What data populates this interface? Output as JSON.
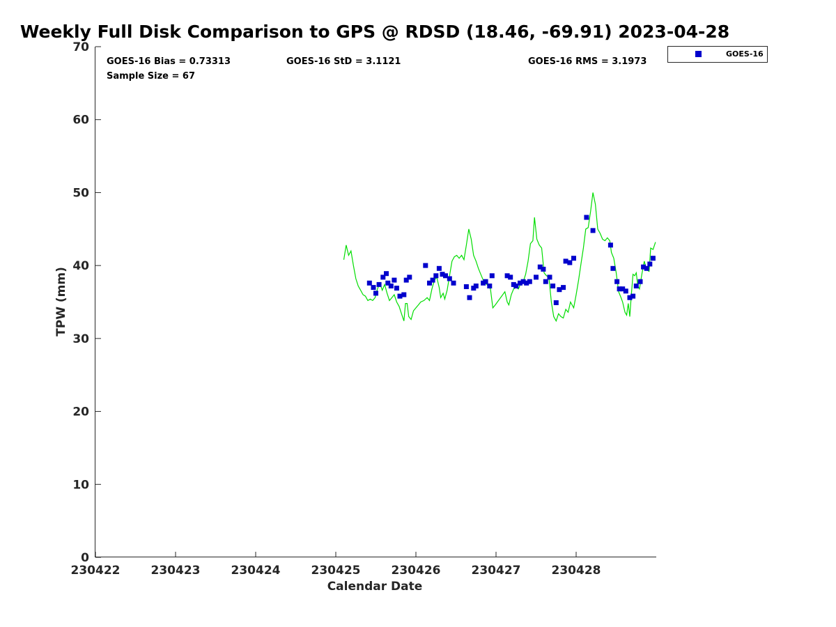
{
  "chart_data": {
    "type": "scatter",
    "title": "Weekly Full Disk Comparison to GPS @ RDSD (18.46, -69.91) 2023-04-28",
    "xlabel": "Calendar Date",
    "ylabel": "TPW (mm)",
    "xlim": [
      0,
      7
    ],
    "ylim": [
      0,
      70
    ],
    "x_tick_values": [
      0,
      1,
      2,
      3,
      4,
      5,
      6
    ],
    "x_tick_labels": [
      "230422",
      "230423",
      "230424",
      "230425",
      "230426",
      "230427",
      "230428"
    ],
    "y_ticks": [
      0,
      10,
      20,
      30,
      40,
      50,
      60,
      70
    ],
    "stats": {
      "bias": "GOES-16 Bias = 0.73313",
      "std": "GOES-16 StD = 3.1121",
      "rms": "GOES-16 RMS = 3.1973",
      "sample_size": "Sample Size = 67"
    },
    "legend": {
      "position": "top-right",
      "entries": [
        "GOES-16"
      ]
    },
    "colors": {
      "goes": "#0000cc",
      "gps": "#00dd00"
    },
    "series": [
      {
        "name": "GOES-16",
        "kind": "scatter",
        "points": [
          [
            3.42,
            37.6
          ],
          [
            3.47,
            37.0
          ],
          [
            3.5,
            36.2
          ],
          [
            3.54,
            37.4
          ],
          [
            3.59,
            38.4
          ],
          [
            3.63,
            38.9
          ],
          [
            3.65,
            37.6
          ],
          [
            3.69,
            37.2
          ],
          [
            3.73,
            38.0
          ],
          [
            3.76,
            36.9
          ],
          [
            3.8,
            35.8
          ],
          [
            3.85,
            36.0
          ],
          [
            3.88,
            38.0
          ],
          [
            3.92,
            38.4
          ],
          [
            4.12,
            40.0
          ],
          [
            4.17,
            37.6
          ],
          [
            4.21,
            38.0
          ],
          [
            4.25,
            38.6
          ],
          [
            4.29,
            39.6
          ],
          [
            4.33,
            38.8
          ],
          [
            4.37,
            38.6
          ],
          [
            4.42,
            38.2
          ],
          [
            4.47,
            37.6
          ],
          [
            4.63,
            37.1
          ],
          [
            4.67,
            35.6
          ],
          [
            4.72,
            36.9
          ],
          [
            4.75,
            37.2
          ],
          [
            4.84,
            37.6
          ],
          [
            4.87,
            37.8
          ],
          [
            4.92,
            37.2
          ],
          [
            4.95,
            38.6
          ],
          [
            5.14,
            38.6
          ],
          [
            5.18,
            38.4
          ],
          [
            5.22,
            37.4
          ],
          [
            5.25,
            37.2
          ],
          [
            5.3,
            37.6
          ],
          [
            5.34,
            37.8
          ],
          [
            5.38,
            37.6
          ],
          [
            5.42,
            37.8
          ],
          [
            5.5,
            38.4
          ],
          [
            5.55,
            39.8
          ],
          [
            5.59,
            39.5
          ],
          [
            5.62,
            37.8
          ],
          [
            5.67,
            38.4
          ],
          [
            5.71,
            37.2
          ],
          [
            5.75,
            34.9
          ],
          [
            5.79,
            36.7
          ],
          [
            5.84,
            37.0
          ],
          [
            5.87,
            40.6
          ],
          [
            5.92,
            40.4
          ],
          [
            5.97,
            41.0
          ],
          [
            6.13,
            46.6
          ],
          [
            6.21,
            44.8
          ],
          [
            6.43,
            42.8
          ],
          [
            6.46,
            39.6
          ],
          [
            6.51,
            37.8
          ],
          [
            6.54,
            36.8
          ],
          [
            6.58,
            36.8
          ],
          [
            6.62,
            36.5
          ],
          [
            6.67,
            35.6
          ],
          [
            6.71,
            35.8
          ],
          [
            6.75,
            37.2
          ],
          [
            6.8,
            37.8
          ],
          [
            6.84,
            39.8
          ],
          [
            6.88,
            39.6
          ],
          [
            6.92,
            40.2
          ],
          [
            6.96,
            41.0
          ]
        ]
      },
      {
        "name": "GPS",
        "kind": "line",
        "points": [
          [
            3.1,
            40.8
          ],
          [
            3.13,
            42.8
          ],
          [
            3.16,
            41.4
          ],
          [
            3.19,
            42.0
          ],
          [
            3.22,
            40.0
          ],
          [
            3.25,
            38.2
          ],
          [
            3.28,
            37.2
          ],
          [
            3.31,
            36.6
          ],
          [
            3.34,
            36.0
          ],
          [
            3.37,
            35.8
          ],
          [
            3.4,
            35.2
          ],
          [
            3.43,
            35.4
          ],
          [
            3.46,
            35.2
          ],
          [
            3.49,
            35.6
          ],
          [
            3.52,
            36.8
          ],
          [
            3.55,
            37.6
          ],
          [
            3.58,
            36.6
          ],
          [
            3.61,
            37.4
          ],
          [
            3.64,
            36.2
          ],
          [
            3.67,
            35.2
          ],
          [
            3.7,
            35.6
          ],
          [
            3.73,
            36.0
          ],
          [
            3.76,
            35.0
          ],
          [
            3.79,
            34.4
          ],
          [
            3.82,
            33.4
          ],
          [
            3.85,
            32.4
          ],
          [
            3.87,
            34.8
          ],
          [
            3.89,
            34.8
          ],
          [
            3.91,
            33.0
          ],
          [
            3.94,
            32.6
          ],
          [
            3.97,
            33.8
          ],
          [
            4.0,
            34.2
          ],
          [
            4.03,
            34.6
          ],
          [
            4.06,
            35.0
          ],
          [
            4.1,
            35.2
          ],
          [
            4.14,
            35.6
          ],
          [
            4.17,
            35.2
          ],
          [
            4.2,
            36.8
          ],
          [
            4.23,
            38.0
          ],
          [
            4.26,
            38.4
          ],
          [
            4.29,
            37.0
          ],
          [
            4.31,
            35.6
          ],
          [
            4.34,
            36.2
          ],
          [
            4.36,
            35.4
          ],
          [
            4.39,
            36.6
          ],
          [
            4.42,
            38.6
          ],
          [
            4.45,
            40.6
          ],
          [
            4.48,
            41.2
          ],
          [
            4.51,
            41.4
          ],
          [
            4.54,
            41.0
          ],
          [
            4.57,
            41.4
          ],
          [
            4.6,
            40.8
          ],
          [
            4.63,
            42.8
          ],
          [
            4.66,
            45.0
          ],
          [
            4.69,
            43.6
          ],
          [
            4.72,
            41.4
          ],
          [
            4.75,
            40.6
          ],
          [
            4.78,
            39.6
          ],
          [
            4.81,
            38.8
          ],
          [
            4.84,
            38.0
          ],
          [
            4.87,
            37.6
          ],
          [
            4.9,
            37.2
          ],
          [
            4.93,
            36.8
          ],
          [
            4.96,
            34.2
          ],
          [
            4.99,
            34.6
          ],
          [
            5.03,
            35.2
          ],
          [
            5.07,
            35.8
          ],
          [
            5.11,
            36.4
          ],
          [
            5.14,
            35.0
          ],
          [
            5.16,
            34.6
          ],
          [
            5.19,
            36.0
          ],
          [
            5.22,
            36.8
          ],
          [
            5.25,
            37.0
          ],
          [
            5.28,
            36.8
          ],
          [
            5.31,
            37.6
          ],
          [
            5.34,
            37.8
          ],
          [
            5.37,
            38.8
          ],
          [
            5.4,
            40.6
          ],
          [
            5.43,
            43.0
          ],
          [
            5.46,
            43.4
          ],
          [
            5.48,
            46.6
          ],
          [
            5.51,
            43.6
          ],
          [
            5.54,
            42.8
          ],
          [
            5.57,
            42.4
          ],
          [
            5.6,
            39.0
          ],
          [
            5.63,
            38.6
          ],
          [
            5.66,
            38.4
          ],
          [
            5.69,
            35.0
          ],
          [
            5.72,
            33.0
          ],
          [
            5.75,
            32.4
          ],
          [
            5.78,
            33.4
          ],
          [
            5.81,
            33.0
          ],
          [
            5.84,
            32.8
          ],
          [
            5.87,
            34.0
          ],
          [
            5.9,
            33.6
          ],
          [
            5.93,
            35.0
          ],
          [
            5.97,
            34.2
          ],
          [
            6.0,
            36.0
          ],
          [
            6.03,
            38.0
          ],
          [
            6.06,
            40.2
          ],
          [
            6.09,
            42.4
          ],
          [
            6.12,
            45.0
          ],
          [
            6.15,
            45.2
          ],
          [
            6.18,
            47.4
          ],
          [
            6.21,
            50.0
          ],
          [
            6.24,
            48.4
          ],
          [
            6.27,
            45.0
          ],
          [
            6.3,
            44.4
          ],
          [
            6.33,
            43.6
          ],
          [
            6.36,
            43.4
          ],
          [
            6.39,
            43.8
          ],
          [
            6.42,
            43.4
          ],
          [
            6.44,
            41.8
          ],
          [
            6.47,
            41.0
          ],
          [
            6.5,
            39.0
          ],
          [
            6.53,
            36.4
          ],
          [
            6.56,
            35.6
          ],
          [
            6.58,
            35.0
          ],
          [
            6.61,
            33.6
          ],
          [
            6.63,
            33.2
          ],
          [
            6.65,
            34.8
          ],
          [
            6.67,
            33.0
          ],
          [
            6.69,
            36.2
          ],
          [
            6.71,
            38.8
          ],
          [
            6.73,
            38.6
          ],
          [
            6.75,
            39.0
          ],
          [
            6.77,
            37.2
          ],
          [
            6.79,
            36.8
          ],
          [
            6.82,
            38.8
          ],
          [
            6.85,
            40.6
          ],
          [
            6.88,
            39.4
          ],
          [
            6.91,
            39.2
          ],
          [
            6.93,
            42.4
          ],
          [
            6.96,
            42.2
          ],
          [
            6.99,
            43.2
          ]
        ]
      }
    ]
  }
}
